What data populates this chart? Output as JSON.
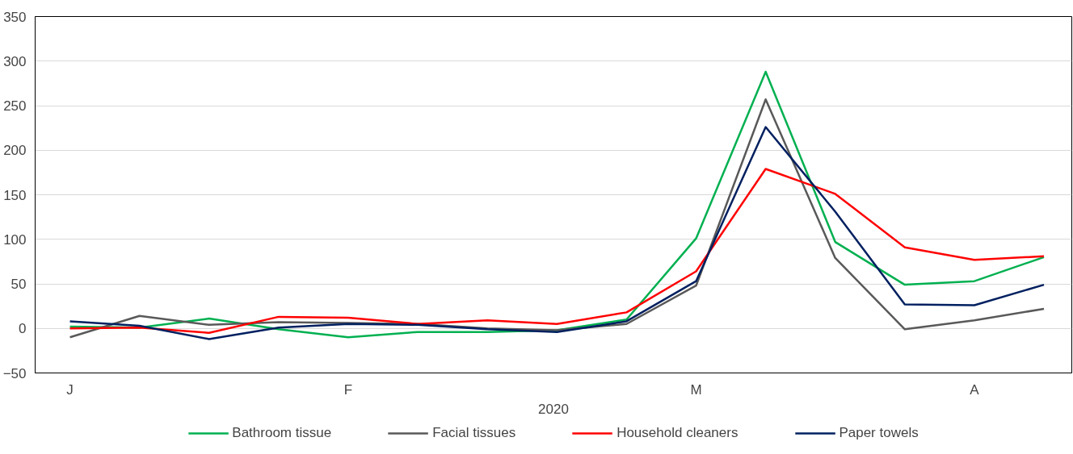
{
  "chart_data": {
    "type": "line",
    "xlabel": "2020",
    "categories": [
      "J",
      null,
      null,
      null,
      "F",
      null,
      null,
      null,
      null,
      "M",
      null,
      null,
      null,
      "A",
      null
    ],
    "series": [
      {
        "name": "Bathroom tissue",
        "color": "#00b050",
        "values": [
          2,
          1,
          11,
          -1,
          -10,
          -4,
          -4,
          -2,
          10,
          101,
          288,
          97,
          49,
          53,
          80
        ]
      },
      {
        "name": "Facial tissues",
        "color": "#595959",
        "values": [
          -10,
          14,
          4,
          7,
          6,
          5,
          0,
          -2,
          5,
          48,
          257,
          79,
          -1,
          9,
          22
        ]
      },
      {
        "name": "Household cleaners",
        "color": "#ff0000",
        "values": [
          0,
          1,
          -5,
          13,
          12,
          5,
          9,
          5,
          18,
          64,
          179,
          151,
          91,
          77,
          81
        ]
      },
      {
        "name": "Paper towels",
        "color": "#002060",
        "values": [
          8,
          3,
          -12,
          1,
          5,
          4,
          -1,
          -4,
          8,
          53,
          226,
          131,
          27,
          26,
          49
        ]
      }
    ],
    "ylim": [
      -50,
      350
    ],
    "yticks": [
      -50,
      0,
      50,
      100,
      150,
      200,
      250,
      300,
      350
    ],
    "grid": "y",
    "legend": "bottom",
    "marker": "none",
    "line_style": "solid"
  }
}
